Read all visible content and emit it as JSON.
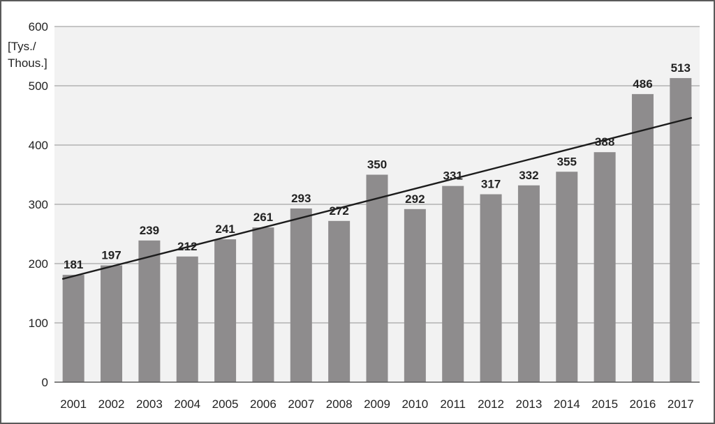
{
  "chart_data": {
    "type": "bar",
    "ylabel_lines": [
      "[Tys./",
      "Thous.]"
    ],
    "ylim": [
      0,
      600
    ],
    "yticks": [
      0,
      100,
      200,
      300,
      400,
      500,
      600
    ],
    "grid": true,
    "legend": "none",
    "categories": [
      "2001",
      "2002",
      "2003",
      "2004",
      "2005",
      "2006",
      "2007",
      "2008",
      "2009",
      "2010",
      "2011",
      "2012",
      "2013",
      "2014",
      "2015",
      "2016",
      "2017"
    ],
    "values": [
      181,
      197,
      239,
      212,
      241,
      261,
      293,
      272,
      350,
      292,
      331,
      317,
      332,
      355,
      388,
      486,
      513
    ],
    "trendline": {
      "type": "linear",
      "start": 174,
      "end": 446
    },
    "colors": {
      "bar": "#8e8c8d",
      "plot_bg": "#f2f2f2",
      "grid": "#a6a6a6",
      "trend": "#1c1c1c",
      "axis": "#595959"
    }
  }
}
